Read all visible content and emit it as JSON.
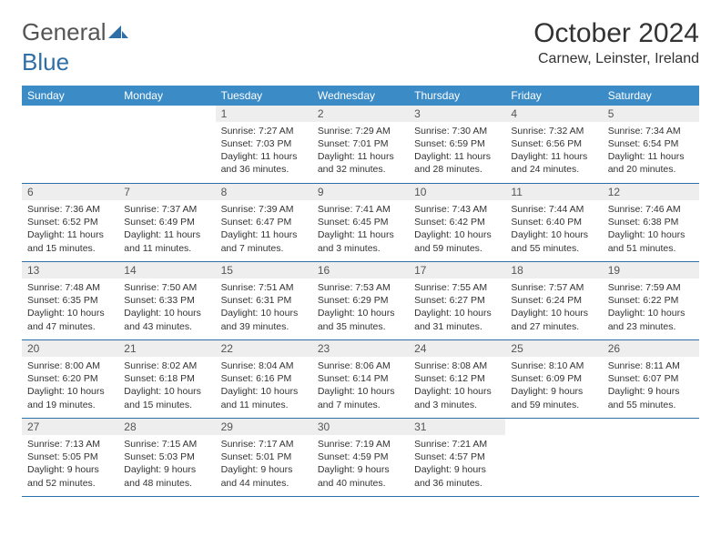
{
  "logo": {
    "word1": "General",
    "word2": "Blue",
    "text_color": "#555555",
    "accent_color": "#2f6fa7"
  },
  "title": "October 2024",
  "location": "Carnew, Leinster, Ireland",
  "colors": {
    "header_bg": "#3b8bc7",
    "header_text": "#ffffff",
    "daynum_bg": "#eeeeee",
    "cell_border": "#2f6fa7",
    "page_bg": "#ffffff",
    "body_text": "#333333"
  },
  "day_headers": [
    "Sunday",
    "Monday",
    "Tuesday",
    "Wednesday",
    "Thursday",
    "Friday",
    "Saturday"
  ],
  "weeks": [
    [
      {
        "empty": true
      },
      {
        "empty": true
      },
      {
        "num": "1",
        "sunrise": "Sunrise: 7:27 AM",
        "sunset": "Sunset: 7:03 PM",
        "daylight": "Daylight: 11 hours and 36 minutes."
      },
      {
        "num": "2",
        "sunrise": "Sunrise: 7:29 AM",
        "sunset": "Sunset: 7:01 PM",
        "daylight": "Daylight: 11 hours and 32 minutes."
      },
      {
        "num": "3",
        "sunrise": "Sunrise: 7:30 AM",
        "sunset": "Sunset: 6:59 PM",
        "daylight": "Daylight: 11 hours and 28 minutes."
      },
      {
        "num": "4",
        "sunrise": "Sunrise: 7:32 AM",
        "sunset": "Sunset: 6:56 PM",
        "daylight": "Daylight: 11 hours and 24 minutes."
      },
      {
        "num": "5",
        "sunrise": "Sunrise: 7:34 AM",
        "sunset": "Sunset: 6:54 PM",
        "daylight": "Daylight: 11 hours and 20 minutes."
      }
    ],
    [
      {
        "num": "6",
        "sunrise": "Sunrise: 7:36 AM",
        "sunset": "Sunset: 6:52 PM",
        "daylight": "Daylight: 11 hours and 15 minutes."
      },
      {
        "num": "7",
        "sunrise": "Sunrise: 7:37 AM",
        "sunset": "Sunset: 6:49 PM",
        "daylight": "Daylight: 11 hours and 11 minutes."
      },
      {
        "num": "8",
        "sunrise": "Sunrise: 7:39 AM",
        "sunset": "Sunset: 6:47 PM",
        "daylight": "Daylight: 11 hours and 7 minutes."
      },
      {
        "num": "9",
        "sunrise": "Sunrise: 7:41 AM",
        "sunset": "Sunset: 6:45 PM",
        "daylight": "Daylight: 11 hours and 3 minutes."
      },
      {
        "num": "10",
        "sunrise": "Sunrise: 7:43 AM",
        "sunset": "Sunset: 6:42 PM",
        "daylight": "Daylight: 10 hours and 59 minutes."
      },
      {
        "num": "11",
        "sunrise": "Sunrise: 7:44 AM",
        "sunset": "Sunset: 6:40 PM",
        "daylight": "Daylight: 10 hours and 55 minutes."
      },
      {
        "num": "12",
        "sunrise": "Sunrise: 7:46 AM",
        "sunset": "Sunset: 6:38 PM",
        "daylight": "Daylight: 10 hours and 51 minutes."
      }
    ],
    [
      {
        "num": "13",
        "sunrise": "Sunrise: 7:48 AM",
        "sunset": "Sunset: 6:35 PM",
        "daylight": "Daylight: 10 hours and 47 minutes."
      },
      {
        "num": "14",
        "sunrise": "Sunrise: 7:50 AM",
        "sunset": "Sunset: 6:33 PM",
        "daylight": "Daylight: 10 hours and 43 minutes."
      },
      {
        "num": "15",
        "sunrise": "Sunrise: 7:51 AM",
        "sunset": "Sunset: 6:31 PM",
        "daylight": "Daylight: 10 hours and 39 minutes."
      },
      {
        "num": "16",
        "sunrise": "Sunrise: 7:53 AM",
        "sunset": "Sunset: 6:29 PM",
        "daylight": "Daylight: 10 hours and 35 minutes."
      },
      {
        "num": "17",
        "sunrise": "Sunrise: 7:55 AM",
        "sunset": "Sunset: 6:27 PM",
        "daylight": "Daylight: 10 hours and 31 minutes."
      },
      {
        "num": "18",
        "sunrise": "Sunrise: 7:57 AM",
        "sunset": "Sunset: 6:24 PM",
        "daylight": "Daylight: 10 hours and 27 minutes."
      },
      {
        "num": "19",
        "sunrise": "Sunrise: 7:59 AM",
        "sunset": "Sunset: 6:22 PM",
        "daylight": "Daylight: 10 hours and 23 minutes."
      }
    ],
    [
      {
        "num": "20",
        "sunrise": "Sunrise: 8:00 AM",
        "sunset": "Sunset: 6:20 PM",
        "daylight": "Daylight: 10 hours and 19 minutes."
      },
      {
        "num": "21",
        "sunrise": "Sunrise: 8:02 AM",
        "sunset": "Sunset: 6:18 PM",
        "daylight": "Daylight: 10 hours and 15 minutes."
      },
      {
        "num": "22",
        "sunrise": "Sunrise: 8:04 AM",
        "sunset": "Sunset: 6:16 PM",
        "daylight": "Daylight: 10 hours and 11 minutes."
      },
      {
        "num": "23",
        "sunrise": "Sunrise: 8:06 AM",
        "sunset": "Sunset: 6:14 PM",
        "daylight": "Daylight: 10 hours and 7 minutes."
      },
      {
        "num": "24",
        "sunrise": "Sunrise: 8:08 AM",
        "sunset": "Sunset: 6:12 PM",
        "daylight": "Daylight: 10 hours and 3 minutes."
      },
      {
        "num": "25",
        "sunrise": "Sunrise: 8:10 AM",
        "sunset": "Sunset: 6:09 PM",
        "daylight": "Daylight: 9 hours and 59 minutes."
      },
      {
        "num": "26",
        "sunrise": "Sunrise: 8:11 AM",
        "sunset": "Sunset: 6:07 PM",
        "daylight": "Daylight: 9 hours and 55 minutes."
      }
    ],
    [
      {
        "num": "27",
        "sunrise": "Sunrise: 7:13 AM",
        "sunset": "Sunset: 5:05 PM",
        "daylight": "Daylight: 9 hours and 52 minutes."
      },
      {
        "num": "28",
        "sunrise": "Sunrise: 7:15 AM",
        "sunset": "Sunset: 5:03 PM",
        "daylight": "Daylight: 9 hours and 48 minutes."
      },
      {
        "num": "29",
        "sunrise": "Sunrise: 7:17 AM",
        "sunset": "Sunset: 5:01 PM",
        "daylight": "Daylight: 9 hours and 44 minutes."
      },
      {
        "num": "30",
        "sunrise": "Sunrise: 7:19 AM",
        "sunset": "Sunset: 4:59 PM",
        "daylight": "Daylight: 9 hours and 40 minutes."
      },
      {
        "num": "31",
        "sunrise": "Sunrise: 7:21 AM",
        "sunset": "Sunset: 4:57 PM",
        "daylight": "Daylight: 9 hours and 36 minutes."
      },
      {
        "empty": true
      },
      {
        "empty": true
      }
    ]
  ]
}
